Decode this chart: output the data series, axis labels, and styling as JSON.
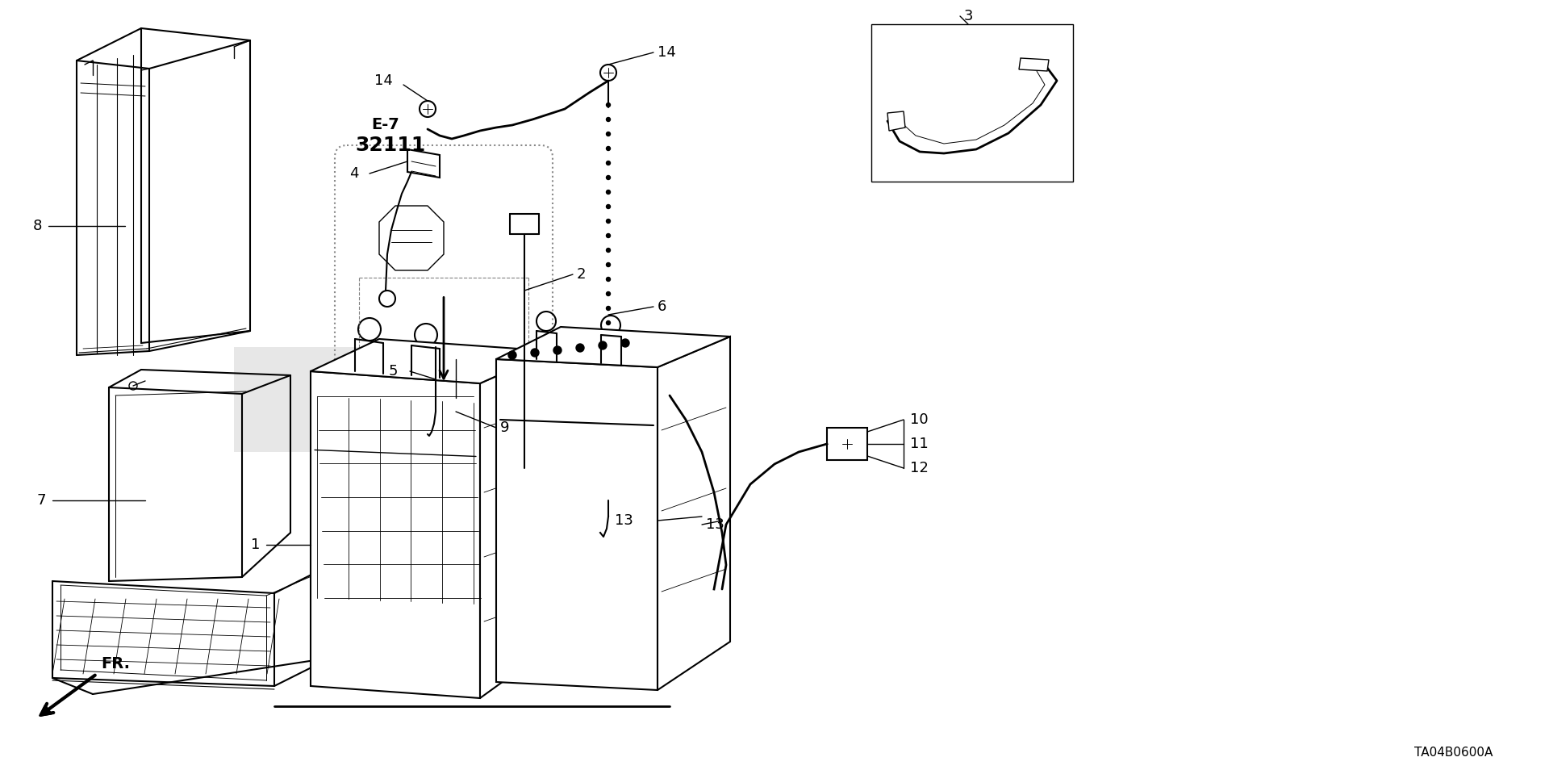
{
  "bg_color": "#ffffff",
  "line_color": "#000000",
  "fig_width": 19.2,
  "fig_height": 9.59,
  "diagram_code": "TA04B0600A",
  "e7_label": "E-7",
  "ref_num": "32111",
  "fr_label": "FR."
}
